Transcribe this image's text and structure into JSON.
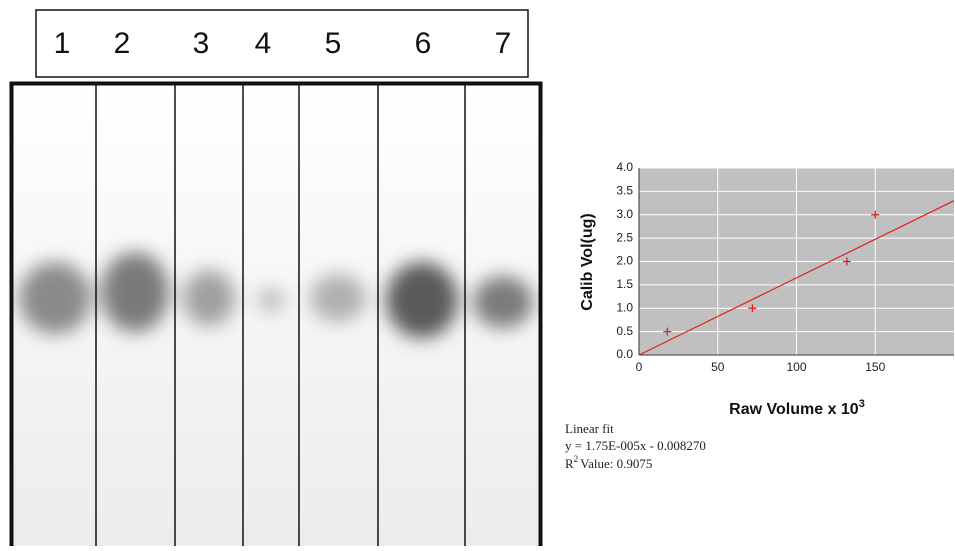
{
  "gel": {
    "lanes": [
      "1",
      "2",
      "3",
      "4",
      "5",
      "6",
      "7"
    ]
  },
  "chart_data": {
    "type": "scatter",
    "ylabel": "Calib Vol(ug)",
    "xlabel": "Raw Volume x 10",
    "xlabel_superscript": "3",
    "xlim": [
      0,
      200
    ],
    "ylim": [
      0,
      4
    ],
    "xticks": [
      0,
      50,
      100,
      150
    ],
    "yticks": [
      {
        "value": 0,
        "label": "0.0"
      },
      0.5,
      {
        "value": 1,
        "label": "1.0"
      },
      1.5,
      {
        "value": 2,
        "label": "2.0"
      },
      2.5,
      {
        "value": 3,
        "label": "3.0"
      },
      3.5,
      {
        "value": 4,
        "label": "4.0"
      }
    ],
    "grid": true,
    "points": {
      "x": [
        18,
        72,
        132,
        150
      ],
      "values": [
        0.5,
        1.0,
        2.0,
        3.0
      ],
      "color": "#e0201c"
    },
    "fit_line": {
      "x": [
        0,
        200
      ],
      "values": [
        0,
        3.3
      ],
      "color": "#e0201c"
    },
    "fit_title": "Linear fit",
    "equation": "y = 1.75E-005x - 0.008270",
    "r2_label": "R",
    "r2_superscript": "2",
    "r2_text": "Value:  0.9075"
  }
}
